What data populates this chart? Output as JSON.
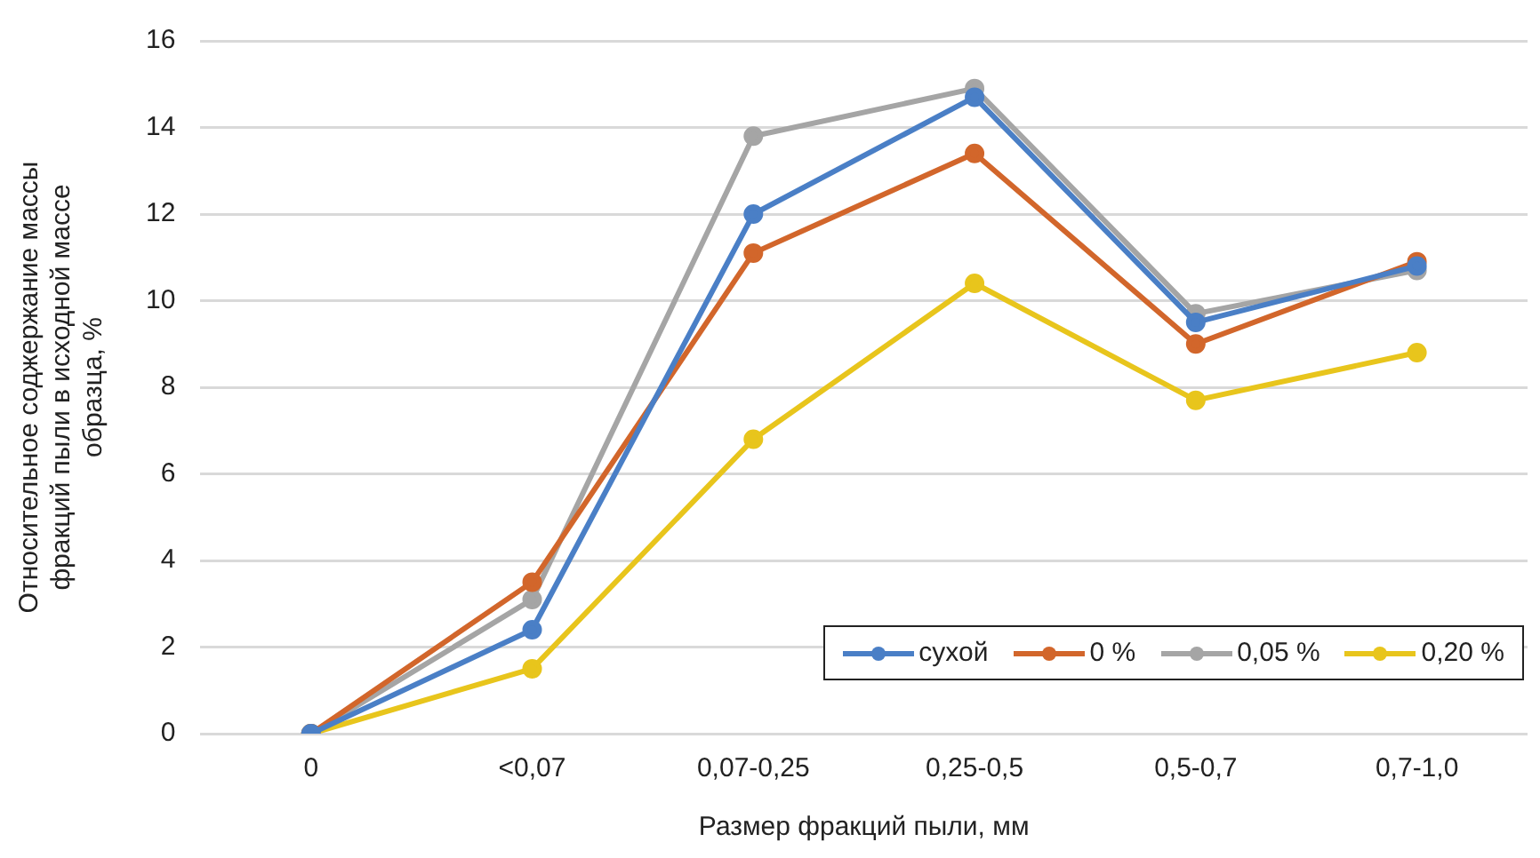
{
  "chart_data": {
    "type": "line",
    "xlabel": "Размер фракций пыли, мм",
    "ylabel": "Относительное соджержание массы фракций пыли в исходной массе образца, %",
    "categories": [
      "0",
      "<0,07",
      "0,07-0,25",
      "0,25-0,5",
      "0,5-0,7",
      "0,7-1,0"
    ],
    "series": [
      {
        "name": "сухой",
        "color": "#4a7fc6",
        "values": [
          0,
          2.4,
          12.0,
          14.7,
          9.5,
          10.8
        ]
      },
      {
        "name": "0 %",
        "color": "#d2662b",
        "values": [
          0,
          3.5,
          11.1,
          13.4,
          9.0,
          10.9
        ]
      },
      {
        "name": "0,05 %",
        "color": "#a5a5a5",
        "values": [
          0,
          3.1,
          13.8,
          14.9,
          9.7,
          10.7
        ]
      },
      {
        "name": "0,20 %",
        "color": "#e8c51c",
        "values": [
          0,
          1.5,
          6.8,
          10.4,
          7.7,
          8.8
        ]
      }
    ],
    "ylim": [
      0,
      16
    ],
    "yticks": [
      0,
      2,
      4,
      6,
      8,
      10,
      12,
      14,
      16
    ],
    "grid": "y",
    "legend": "bottom right",
    "marker": "circle",
    "line_style": "solid"
  }
}
